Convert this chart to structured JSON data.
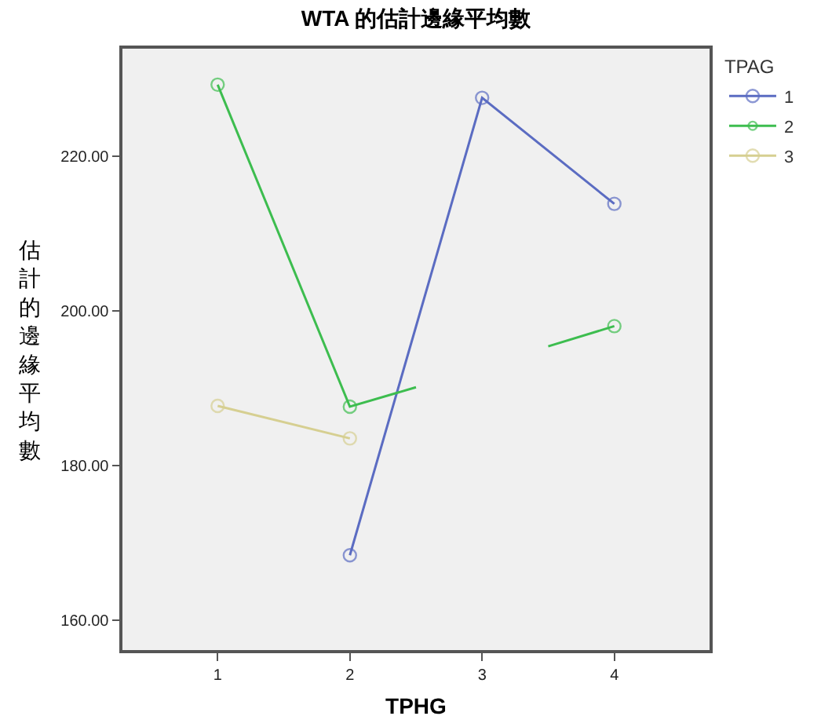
{
  "chart_data": {
    "type": "line",
    "title": "WTA 的估計邊緣平均數",
    "xlabel": "TPHG",
    "ylabel": "估計的邊緣平均數",
    "legend_title": "TPAG",
    "x": [
      1,
      2,
      3,
      4
    ],
    "series": [
      {
        "name": "1",
        "color": "#5b6cc2",
        "values": [
          null,
          168.4,
          227.5,
          213.8
        ]
      },
      {
        "name": "2",
        "color": "#3dbd4f",
        "x": [
          1,
          2,
          2.5,
          3,
          3.5,
          4
        ],
        "values": [
          229.2,
          187.6,
          190.1,
          null,
          195.4,
          198.0
        ]
      },
      {
        "name": "3",
        "color": "#d6cf91",
        "values": [
          187.7,
          183.5,
          null,
          null
        ]
      }
    ],
    "xlim": [
      0.28,
      4.72
    ],
    "xticks": [
      1,
      2,
      3,
      4
    ],
    "ylim": [
      156.15,
      233.85
    ],
    "yticks": [
      {
        "value": 160,
        "label": "160.00"
      },
      {
        "value": 180,
        "label": "180.00"
      },
      {
        "value": 200,
        "label": "200.00"
      },
      {
        "value": 220,
        "label": "220.00"
      }
    ],
    "marker": "circle",
    "grid": false,
    "legend": "top right"
  }
}
